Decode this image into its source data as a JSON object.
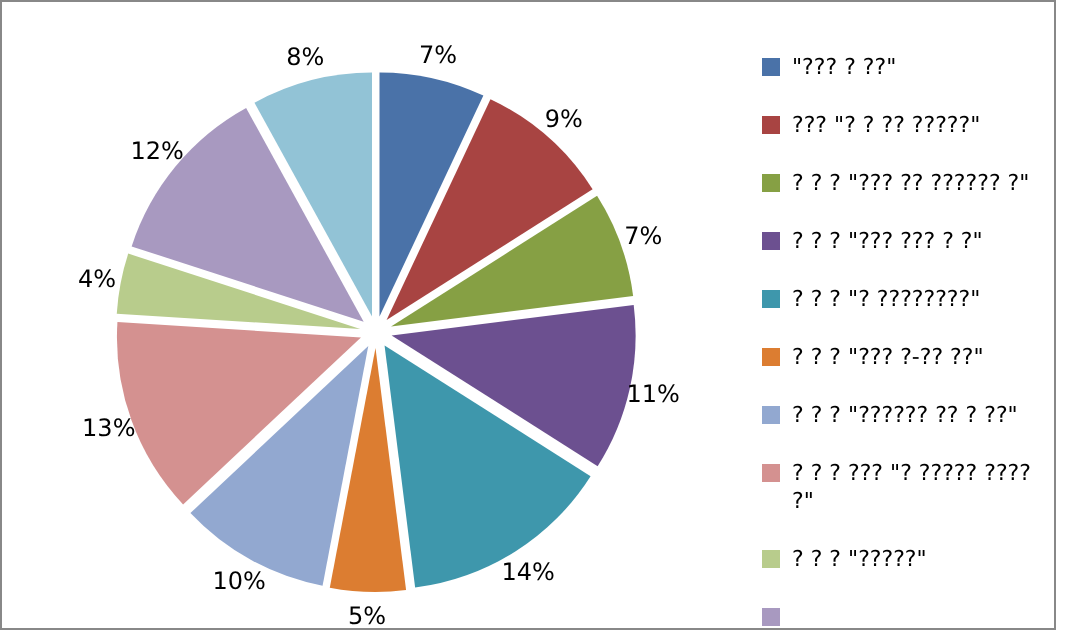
{
  "chart_data": {
    "type": "pie",
    "categories": [
      "\"??? ? ??\"",
      "??? \"? ? ?? ?????\"",
      "? ? ? \"??? ?? ?????? ?\"",
      "? ? ? \"??? ??? ? ?\"",
      "? ? ? \"? ????????\"",
      "? ? ? \"??? ?-?? ??\"",
      "? ? ? \"?????? ?? ? ??\"",
      "? ? ? ??? \"? ????? ???? ?\"",
      "? ? ? \"?????\"",
      null,
      null
    ],
    "values": [
      7,
      9,
      7,
      11,
      14,
      5,
      10,
      13,
      4,
      12,
      8
    ],
    "value_labels": [
      "7%",
      "9%",
      "7%",
      "11%",
      "14%",
      "5%",
      "10%",
      "13%",
      "4%",
      "12%",
      "8%"
    ],
    "colors": [
      "#4a72a8",
      "#a84442",
      "#86a044",
      "#6c5090",
      "#3e97ac",
      "#dc7d31",
      "#92a8d0",
      "#d49190",
      "#b8cc8c",
      "#a899c0",
      "#92c3d6"
    ],
    "legend": "right"
  }
}
